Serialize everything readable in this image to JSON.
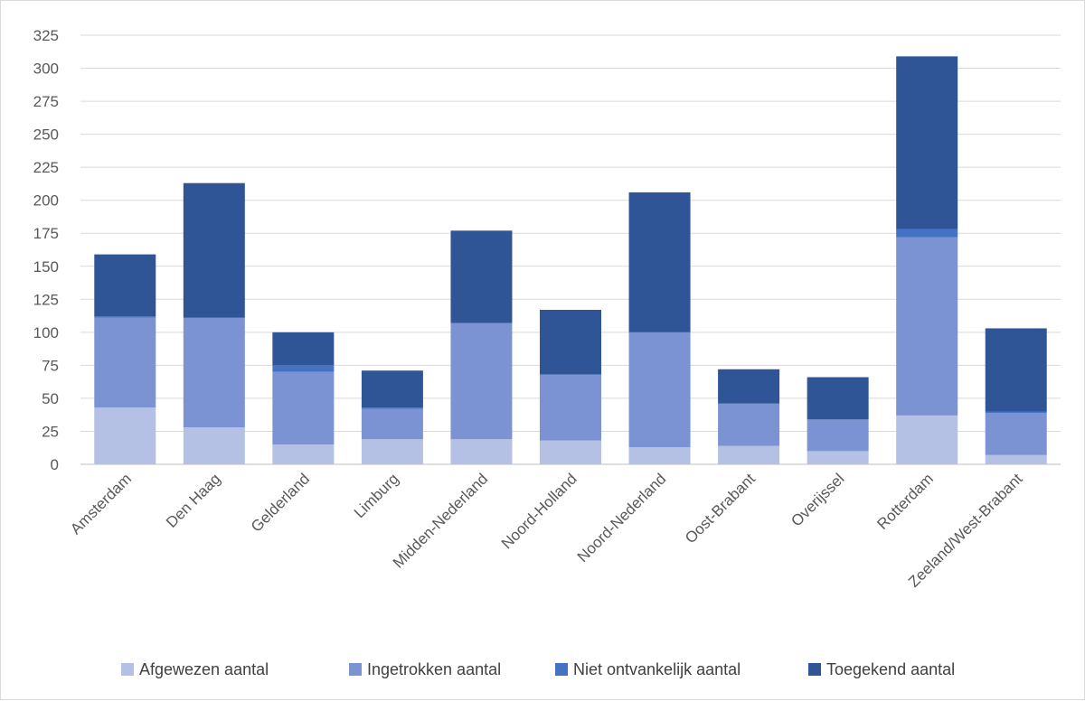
{
  "chart_data": {
    "type": "bar",
    "stacked": true,
    "categories": [
      "Amsterdam",
      "Den Haag",
      "Gelderland",
      "Limburg",
      "Midden-Nederland",
      "Noord-Holland",
      "Noord-Nederland",
      "Oost-Brabant",
      "Overijssel",
      "Rotterdam",
      "Zeeland/West-Brabant"
    ],
    "series": [
      {
        "name": "Afgewezen aantal",
        "color": "#b4c0e4",
        "values": [
          43,
          28,
          15,
          19,
          19,
          18,
          13,
          14,
          10,
          37,
          7
        ]
      },
      {
        "name": "Ingetrokken aantal",
        "color": "#7b93d3",
        "values": [
          68,
          83,
          55,
          23,
          88,
          50,
          87,
          32,
          24,
          135,
          32
        ]
      },
      {
        "name": "Niet ontvankelijk aantal",
        "color": "#4472c4",
        "values": [
          1,
          0,
          5,
          1,
          0,
          0,
          0,
          0,
          0,
          6,
          1
        ]
      },
      {
        "name": "Toegekend aantal",
        "color": "#2f5597",
        "values": [
          47,
          102,
          25,
          28,
          70,
          49,
          106,
          26,
          32,
          131,
          63
        ]
      }
    ],
    "yticks": [
      "0",
      "25",
      "50",
      "75",
      "100",
      "125",
      "150",
      "175",
      "200",
      "225",
      "250",
      "275",
      "300",
      "325"
    ],
    "ylim": [
      0,
      325
    ],
    "grid": true,
    "legend_position": "bottom"
  }
}
